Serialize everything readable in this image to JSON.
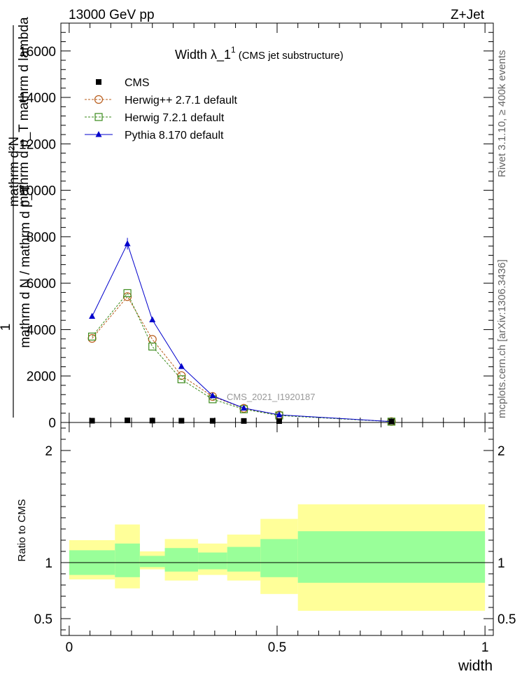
{
  "header": {
    "left": "13000 GeV pp",
    "right": "Z+Jet"
  },
  "side_labels": {
    "rivet": "Rivet 3.1.10, ≥ 400k events",
    "mcplots": "mcplots.cern.ch [arXiv:1306.3436]"
  },
  "watermark": "CMS_2021_I1920187",
  "title": {
    "main": "Width λ_1",
    "sup": "1",
    "sub": "(CMS jet substructure)"
  },
  "main_ylabel": {
    "one": "1",
    "numerator": "mathrm d²N",
    "numerator_lower": "mathrm d p_T mathrm d lambda",
    "denominator": "mathrm d N / mathrm d p_T"
  },
  "ratio_ylabel": "Ratio to CMS",
  "xlabel": "width",
  "legend": [
    {
      "label": "CMS",
      "marker": "square-filled",
      "color": "#000000"
    },
    {
      "label": "Herwig++ 2.7.1 default",
      "marker": "circle-open",
      "color": "#b85c1a"
    },
    {
      "label": "Herwig 7.2.1 default",
      "marker": "square-open",
      "color": "#3a8a1a"
    },
    {
      "label": "Pythia 8.170 default",
      "marker": "triangle-filled",
      "color": "#0000cc"
    }
  ],
  "chart_data": {
    "type": "line",
    "x_range": [
      -0.02,
      1.02
    ],
    "y_range": [
      0,
      17200
    ],
    "ratio_range": [
      0.35,
      2.25
    ],
    "x_ticks": [
      {
        "v": 0,
        "label": "0"
      },
      {
        "v": 0.5,
        "label": "0.5"
      },
      {
        "v": 1,
        "label": "1"
      }
    ],
    "y_ticks": [
      {
        "v": 0,
        "label": "0"
      },
      {
        "v": 2000,
        "label": "2000"
      },
      {
        "v": 4000,
        "label": "4000"
      },
      {
        "v": 6000,
        "label": "6000"
      },
      {
        "v": 8000,
        "label": "8000"
      },
      {
        "v": 10000,
        "label": "10000"
      },
      {
        "v": 12000,
        "label": "12000"
      },
      {
        "v": 14000,
        "label": "14000"
      },
      {
        "v": 16000,
        "label": "16000"
      }
    ],
    "ratio_ticks": [
      {
        "v": 0.5,
        "label": "0.5"
      },
      {
        "v": 1,
        "label": "1"
      },
      {
        "v": 2,
        "label": "2"
      }
    ],
    "x": [
      0.055,
      0.14,
      0.2,
      0.27,
      0.345,
      0.42,
      0.505,
      0.775
    ],
    "bins": [
      [
        0,
        0.11
      ],
      [
        0.11,
        0.17
      ],
      [
        0.17,
        0.23
      ],
      [
        0.23,
        0.31
      ],
      [
        0.31,
        0.38
      ],
      [
        0.38,
        0.46
      ],
      [
        0.46,
        0.55
      ],
      [
        0.55,
        1.0
      ]
    ],
    "series": [
      {
        "name": "CMS",
        "values": [
          45,
          60,
          50,
          45,
          40,
          35,
          30,
          10
        ]
      },
      {
        "name": "Herwig++ 2.7.1 default",
        "values": [
          3620,
          5420,
          3580,
          2020,
          1120,
          610,
          320,
          40
        ]
      },
      {
        "name": "Herwig 7.2.1 default",
        "values": [
          3700,
          5570,
          3270,
          1860,
          1000,
          570,
          300,
          35
        ]
      },
      {
        "name": "Pythia 8.170 default",
        "values": [
          4570,
          7700,
          4420,
          2410,
          1150,
          620,
          330,
          40
        ]
      }
    ],
    "ratio_band_inner": [
      [
        0.89,
        1.11
      ],
      [
        0.87,
        1.17
      ],
      [
        0.96,
        1.06
      ],
      [
        0.92,
        1.13
      ],
      [
        0.94,
        1.09
      ],
      [
        0.92,
        1.14
      ],
      [
        0.87,
        1.21
      ],
      [
        0.82,
        1.28
      ]
    ],
    "ratio_band_outer": [
      [
        0.85,
        1.2
      ],
      [
        0.77,
        1.34
      ],
      [
        0.94,
        1.1
      ],
      [
        0.84,
        1.21
      ],
      [
        0.89,
        1.17
      ],
      [
        0.84,
        1.25
      ],
      [
        0.72,
        1.39
      ],
      [
        0.57,
        1.52
      ]
    ]
  }
}
